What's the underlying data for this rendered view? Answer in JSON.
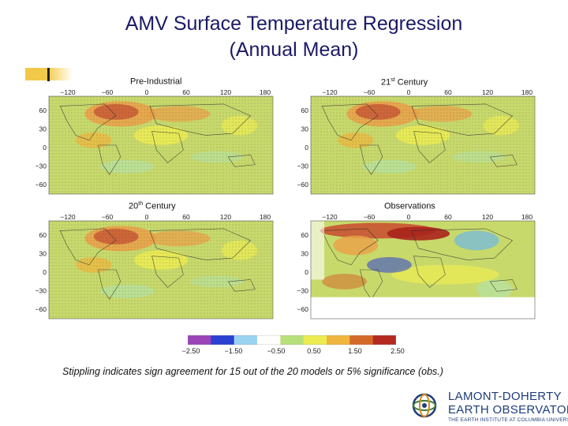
{
  "title": {
    "line1": "AMV Surface Temperature Regression",
    "line2": "(Annual Mean)"
  },
  "panels": [
    {
      "id": "preindustrial",
      "label_main": "Pre-Industrial",
      "label_sup": "",
      "label_rest": "",
      "variant": "model"
    },
    {
      "id": "c21",
      "label_main": "21",
      "label_sup": "st",
      "label_rest": " Century",
      "variant": "model"
    },
    {
      "id": "c20",
      "label_main": "20",
      "label_sup": "th",
      "label_rest": " Century",
      "variant": "model"
    },
    {
      "id": "observations",
      "label_main": "Observations",
      "label_sup": "",
      "label_rest": "",
      "variant": "obs"
    }
  ],
  "map_axes": {
    "lon_ticks": [
      "−120",
      "−60",
      "0",
      "60",
      "120",
      "180"
    ],
    "lat_ticks": [
      "60",
      "30",
      "0",
      "−30",
      "−60"
    ]
  },
  "colorbar": {
    "colors": [
      "#9a44b8",
      "#2b3fd1",
      "#9ad3f2",
      "#ffffff",
      "#b8e07a",
      "#ecec52",
      "#f0b53c",
      "#d46a2a",
      "#b42a20"
    ],
    "tick_labels": [
      "−2.50",
      "−1.50",
      "−0.50",
      "0.50",
      "1.50",
      "2.50"
    ]
  },
  "caption": "Stippling indicates sign agreement for 15 out of the 20 models or 5% significance (obs.)",
  "logo": {
    "line1": "LAMONT-DOHERTY",
    "line2": "EARTH OBSERVATORY",
    "line3": "THE EARTH INSTITUTE AT COLUMBIA UNIVERSITY"
  },
  "theme": {
    "title_color": "#1a1a66",
    "ocean_base": "#c8d96c",
    "warm": "#e9a24a",
    "hot": "#c85a36",
    "cool": "#b8e09a"
  }
}
